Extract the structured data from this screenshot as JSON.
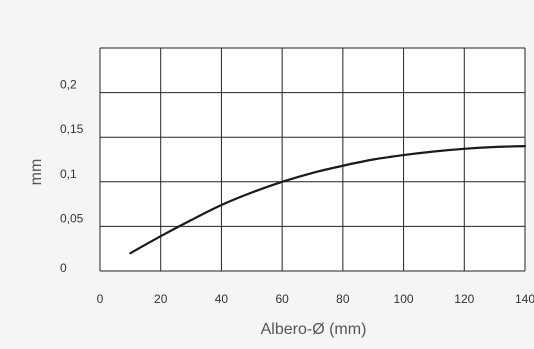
{
  "chart_data": {
    "type": "line",
    "xlabel": "Albero-Ø (mm)",
    "ylabel": "mm",
    "xlim": [
      0,
      140
    ],
    "ylim": [
      0,
      0.25
    ],
    "x_ticks": [
      0,
      20,
      40,
      60,
      80,
      100,
      120,
      140
    ],
    "x_tick_labels": [
      "0",
      "20",
      "40",
      "60",
      "80",
      "100",
      "120",
      "140"
    ],
    "y_ticks": [
      0,
      0.05,
      0.1,
      0.15,
      0.2
    ],
    "y_tick_labels": [
      "0",
      "0,05",
      "0,1",
      "0,15",
      "0,2"
    ],
    "grid": true,
    "series": [
      {
        "x": [
          10,
          20,
          30,
          40,
          50,
          60,
          70,
          80,
          90,
          100,
          110,
          120,
          130,
          140
        ],
        "y": [
          0.02,
          0.039,
          0.057,
          0.074,
          0.088,
          0.1,
          0.11,
          0.118,
          0.125,
          0.13,
          0.134,
          0.137,
          0.139,
          0.14
        ]
      }
    ],
    "colors": {
      "background": "#f5f5f5",
      "plot_background": "#ffffff",
      "grid": "#222222",
      "line": "#1a1a1a",
      "text": "#333333"
    }
  }
}
